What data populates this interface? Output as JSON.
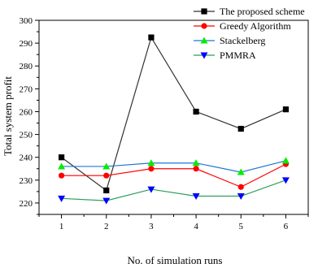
{
  "chart_data": {
    "type": "line",
    "title": "",
    "xlabel": "No. of simulation runs",
    "ylabel": "Total system profit",
    "x": [
      1,
      2,
      3,
      4,
      5,
      6
    ],
    "xlim": [
      0.5,
      6.5
    ],
    "ylim": [
      215,
      300
    ],
    "xticks": [
      "1",
      "2",
      "3",
      "4",
      "5",
      "6"
    ],
    "yticks": [
      220,
      230,
      240,
      250,
      260,
      270,
      280,
      290,
      300
    ],
    "grid": false,
    "legend_position": "top-right",
    "series": [
      {
        "name": "The proposed scheme",
        "color": "#000000",
        "marker": "square",
        "line_color": "#333333",
        "values": [
          240,
          225.5,
          292.5,
          260,
          252.5,
          261
        ]
      },
      {
        "name": "Greedy Algorithm",
        "color": "#ff0000",
        "marker": "circle",
        "line_color": "#ff0000",
        "values": [
          232,
          232,
          235,
          235,
          227,
          237
        ]
      },
      {
        "name": "Stackelberg",
        "color": "#00ee00",
        "marker": "triangle-up",
        "line_color": "#1f77d4",
        "values": [
          236,
          236,
          237.5,
          237.5,
          233.5,
          238.5
        ]
      },
      {
        "name": "PMMRA",
        "color": "#0000ff",
        "marker": "triangle-down",
        "line_color": "#2e9e5a",
        "values": [
          222,
          221,
          226,
          223,
          223,
          230
        ]
      }
    ]
  }
}
